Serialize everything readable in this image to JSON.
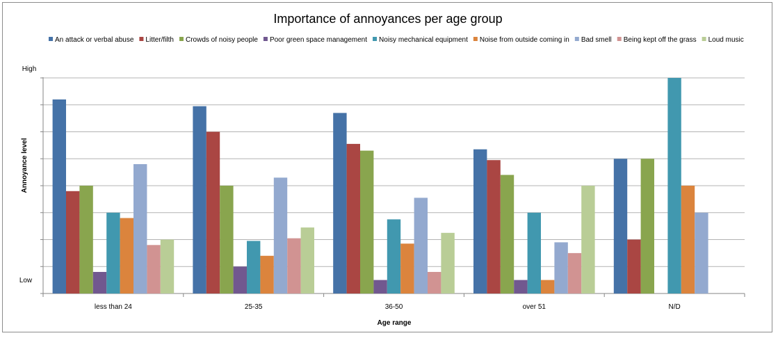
{
  "chart_data": {
    "type": "bar",
    "title": "Importance of annoyances per age group",
    "xlabel": "Age range",
    "ylabel": "Annoyance level",
    "y_tick_labels": {
      "top": "High",
      "bottom": "Low"
    },
    "ylim": [
      0,
      8
    ],
    "grid": true,
    "legend_position": "top",
    "categories": [
      "less than 24",
      "25-35",
      "36-50",
      "over 51",
      "N/D"
    ],
    "series": [
      {
        "name": "An attack or verbal abuse",
        "color": "#4572a7",
        "values": [
          7.2,
          6.95,
          6.7,
          5.35,
          5.0
        ]
      },
      {
        "name": "Litter/filth",
        "color": "#aa4643",
        "values": [
          3.8,
          6.0,
          5.55,
          4.95,
          2.0
        ]
      },
      {
        "name": "Crowds of noisy people",
        "color": "#89a54e",
        "values": [
          4.0,
          4.0,
          5.3,
          4.4,
          5.0
        ]
      },
      {
        "name": "Poor green space management",
        "color": "#71588f",
        "values": [
          0.8,
          1.0,
          0.5,
          0.5,
          0
        ]
      },
      {
        "name": "Noisy mechanical equipment",
        "color": "#4198af",
        "values": [
          3.0,
          1.95,
          2.75,
          3.0,
          8.0
        ]
      },
      {
        "name": "Noise from outside coming in",
        "color": "#db843d",
        "values": [
          2.8,
          1.4,
          1.85,
          0.5,
          4.0
        ]
      },
      {
        "name": "Bad smell",
        "color": "#93a9cf",
        "values": [
          4.8,
          4.3,
          3.55,
          1.9,
          3.0
        ]
      },
      {
        "name": "Being kept off the grass",
        "color": "#d19392",
        "values": [
          1.8,
          2.05,
          0.8,
          1.5,
          0
        ]
      },
      {
        "name": "Loud music",
        "color": "#b9cd96",
        "values": [
          2.0,
          2.45,
          2.25,
          4.0,
          0
        ]
      }
    ]
  }
}
